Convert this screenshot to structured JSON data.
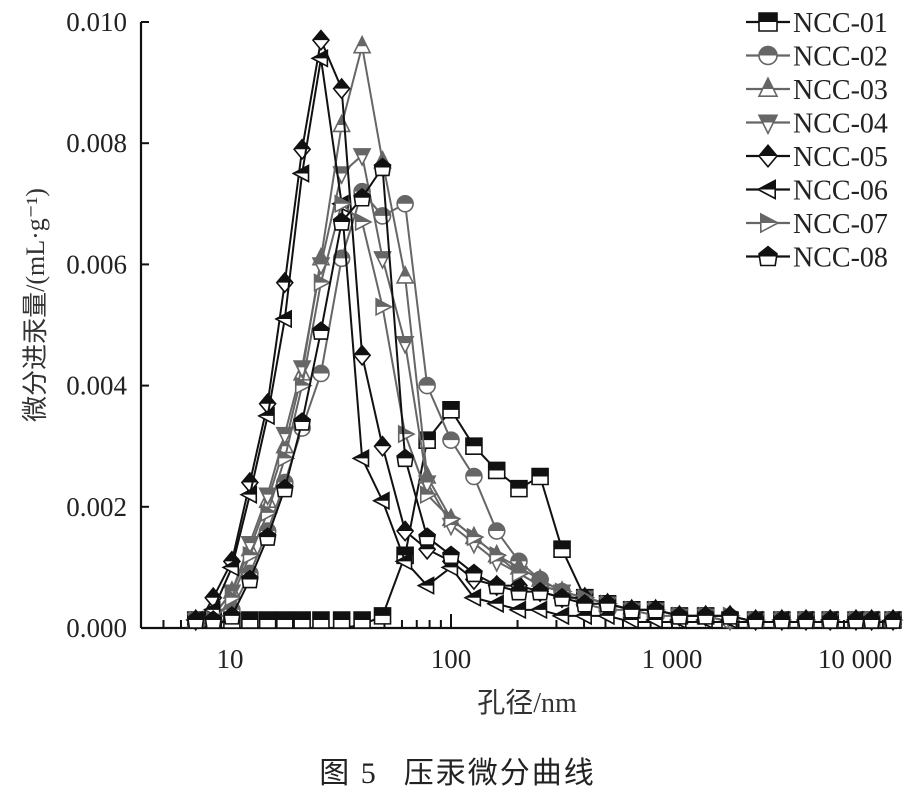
{
  "figure": {
    "caption_number": "图 5",
    "caption_title": "压汞微分曲线"
  },
  "chart_data": {
    "type": "line",
    "title": "压汞微分曲线",
    "xlabel": "孔径/nm",
    "ylabel": "微分进汞量/(mL·g⁻¹)",
    "xscale": "log",
    "xlim": [
      4.5,
      10000
    ],
    "ylim": [
      0,
      0.01
    ],
    "x_ticks": [
      10,
      100,
      1000,
      10000
    ],
    "x_tick_labels": [
      "10",
      "100",
      "1 000",
      "10 000"
    ],
    "y_ticks": [
      0.0,
      0.002,
      0.004,
      0.006,
      0.008,
      0.01
    ],
    "y_tick_labels": [
      "0.000",
      "0.002",
      "0.004",
      "0.006",
      "0.008",
      "0.010"
    ],
    "grid": false,
    "legend_position": "upper right",
    "x": [
      7.0,
      8.4,
      10.2,
      12.3,
      14.8,
      17.7,
      21.2,
      25.8,
      32,
      39.6,
      49,
      62,
      78,
      100,
      127,
      161,
      203,
      253,
      318,
      403,
      511,
      657,
      843,
      1080,
      1420,
      1830,
      2390,
      3140,
      4040,
      5200,
      6800,
      8000,
      10000
    ],
    "series": [
      {
        "name": "NCC-01",
        "marker": "square",
        "color": "#111111",
        "values": [
          0,
          0,
          0,
          0,
          0,
          0,
          0,
          0,
          0,
          5e-05,
          0.0002,
          0.0012,
          0.0031,
          0.0036,
          0.003,
          0.0026,
          0.0023,
          0.0025,
          0.0013,
          0.0005,
          0.0004,
          0.0003,
          0.0003,
          0.0002,
          0.0002,
          0.0001,
          0.0001,
          0.0001,
          0.0001,
          0.0001,
          0.0001,
          0.0001,
          0.0001
        ]
      },
      {
        "name": "NCC-02",
        "marker": "circle",
        "color": "#666666",
        "values": [
          0,
          0.0001,
          0.0003,
          0.0009,
          0.0016,
          0.0024,
          0.0033,
          0.0042,
          0.0061,
          0.0072,
          0.0068,
          0.007,
          0.004,
          0.0031,
          0.0025,
          0.0016,
          0.0011,
          0.0008,
          0.0006,
          0.0004,
          0.0003,
          0.0003,
          0.0002,
          0.0002,
          0.0002,
          0.0001,
          0.0001,
          0.0001,
          0.0001,
          0.0001,
          0.0001,
          0.0001,
          0.0001
        ]
      },
      {
        "name": "NCC-03",
        "marker": "triangle-up",
        "color": "#666666",
        "values": [
          0,
          0.0002,
          0.0006,
          0.0013,
          0.0021,
          0.003,
          0.0042,
          0.0061,
          0.0083,
          0.0096,
          0.0077,
          0.0058,
          0.0025,
          0.0018,
          0.0015,
          0.0012,
          0.001,
          0.0008,
          0.0006,
          0.0005,
          0.0004,
          0.0003,
          0.0003,
          0.0002,
          0.0002,
          0.0002,
          0.0001,
          0.0001,
          0.0001,
          0.0001,
          0.0001,
          0.0001,
          0.0001
        ]
      },
      {
        "name": "NCC-04",
        "marker": "triangle-down",
        "color": "#666666",
        "values": [
          0,
          0.0002,
          0.0006,
          0.0014,
          0.0022,
          0.0032,
          0.0043,
          0.006,
          0.0075,
          0.0078,
          0.0061,
          0.0047,
          0.0024,
          0.0017,
          0.0014,
          0.0011,
          0.0009,
          0.0007,
          0.0006,
          0.0005,
          0.0004,
          0.0003,
          0.0003,
          0.0002,
          0.0002,
          0.0001,
          0.0001,
          0.0001,
          0.0001,
          0.0001,
          0.0001,
          0.0001,
          0.0001
        ]
      },
      {
        "name": "NCC-05",
        "marker": "diamond",
        "color": "#111111",
        "values": [
          0,
          0.0005,
          0.0011,
          0.0024,
          0.0037,
          0.0057,
          0.0079,
          0.0097,
          0.0089,
          0.0045,
          0.003,
          0.0016,
          0.0013,
          0.0011,
          0.0008,
          0.0007,
          0.0007,
          0.0006,
          0.0005,
          0.0005,
          0.0004,
          0.0003,
          0.0003,
          0.0002,
          0.0002,
          0.0002,
          0.0001,
          0.0001,
          0.0001,
          0.0001,
          0.0001,
          0.0001,
          0.0001
        ]
      },
      {
        "name": "NCC-06",
        "marker": "triangle-left",
        "color": "#111111",
        "values": [
          0,
          0.0003,
          0.001,
          0.0022,
          0.0035,
          0.0051,
          0.0075,
          0.0094,
          0.007,
          0.0028,
          0.0021,
          0.0011,
          0.0007,
          0.001,
          0.0005,
          0.0004,
          0.0003,
          0.0003,
          0.0002,
          0.0002,
          0.0002,
          0.0001,
          0.0001,
          0.0001,
          0.0001,
          0.0001,
          0.0001,
          0.0001,
          0.0001,
          0.0001,
          0.0001,
          0.0001,
          0.0001
        ]
      },
      {
        "name": "NCC-07",
        "marker": "triangle-right",
        "color": "#666666",
        "values": [
          0,
          0.0001,
          0.0005,
          0.0012,
          0.0019,
          0.0028,
          0.004,
          0.0057,
          0.007,
          0.0067,
          0.0053,
          0.0032,
          0.0022,
          0.0018,
          0.0015,
          0.0012,
          0.0009,
          0.0007,
          0.0006,
          0.0005,
          0.0004,
          0.0003,
          0.0003,
          0.0002,
          0.0002,
          0.0002,
          0.0001,
          0.0001,
          0.0001,
          0.0001,
          0.0001,
          0.0001,
          0.0001
        ]
      },
      {
        "name": "NCC-08",
        "marker": "pentagon",
        "color": "#111111",
        "values": [
          0,
          0,
          0.0002,
          0.0008,
          0.0015,
          0.0023,
          0.0034,
          0.0049,
          0.0067,
          0.0071,
          0.0076,
          0.0028,
          0.0015,
          0.0012,
          0.0009,
          0.0007,
          0.0006,
          0.0006,
          0.0005,
          0.0004,
          0.0004,
          0.0003,
          0.0003,
          0.0002,
          0.0002,
          0.0002,
          0.0001,
          0.0001,
          0.0001,
          0.0001,
          0.0001,
          0.0001,
          0.0001
        ]
      }
    ]
  }
}
